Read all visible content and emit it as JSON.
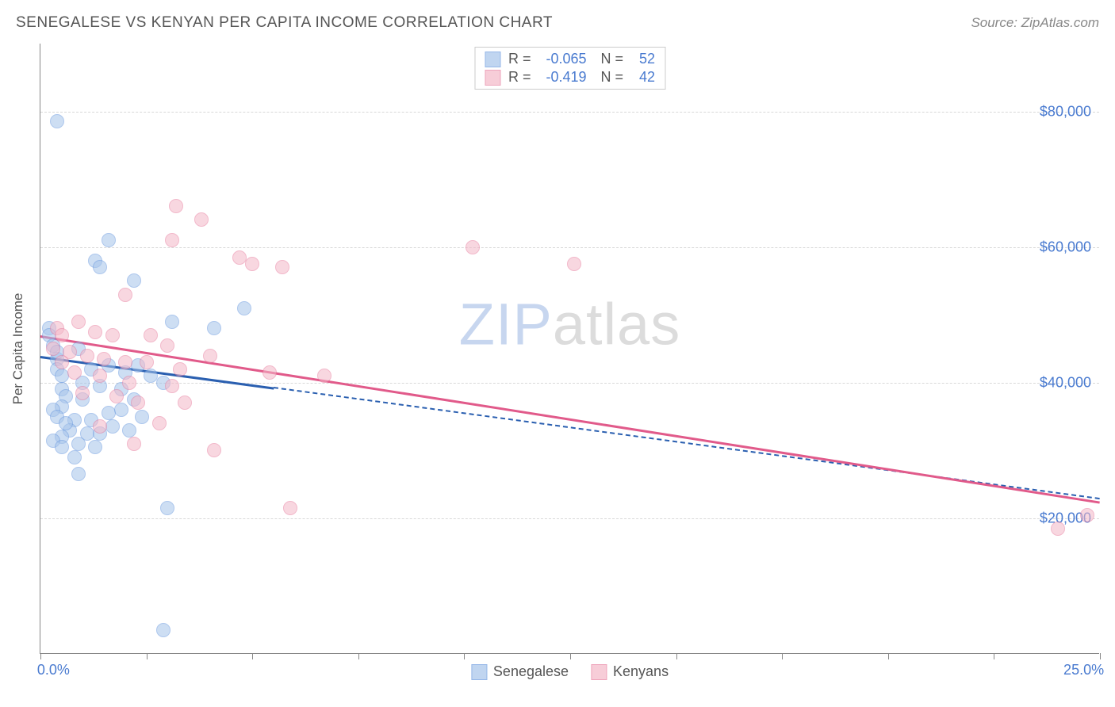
{
  "title": "SENEGALESE VS KENYAN PER CAPITA INCOME CORRELATION CHART",
  "source": "Source: ZipAtlas.com",
  "y_axis_label": "Per Capita Income",
  "watermark": {
    "part1": "ZIP",
    "part2": "atlas"
  },
  "chart": {
    "type": "scatter",
    "xlim": [
      0,
      25
    ],
    "ylim": [
      0,
      90000
    ],
    "x_ticks": [
      0,
      2.5,
      5,
      7.5,
      10,
      12.5,
      15,
      17.5,
      20,
      22.5,
      25
    ],
    "x_tick_labels": {
      "0": "0.0%",
      "25": "25.0%"
    },
    "y_gridlines": [
      20000,
      40000,
      60000,
      80000
    ],
    "y_tick_labels": {
      "20000": "$20,000",
      "40000": "$40,000",
      "60000": "$60,000",
      "80000": "$80,000"
    },
    "background_color": "#ffffff",
    "grid_color": "#d8d8d8",
    "axis_color": "#888888",
    "dot_radius": 9,
    "series": [
      {
        "name": "Senegalese",
        "fill": "#a6c4ea",
        "fill_opacity": 0.55,
        "stroke": "#6b9adf",
        "stroke_width": 1.3,
        "r": "-0.065",
        "n": "52",
        "trend": {
          "color": "#2a5fb0",
          "solid_from_x": 0,
          "solid_to_x": 5.5,
          "y_at_x0": 44000,
          "y_at_x25": 23000
        },
        "points": [
          [
            0.4,
            78500
          ],
          [
            1.6,
            61000
          ],
          [
            1.3,
            58000
          ],
          [
            1.4,
            57000
          ],
          [
            2.2,
            55000
          ],
          [
            3.1,
            49000
          ],
          [
            4.1,
            48000
          ],
          [
            4.8,
            51000
          ],
          [
            0.2,
            48000
          ],
          [
            0.2,
            47000
          ],
          [
            0.3,
            45500
          ],
          [
            0.9,
            45000
          ],
          [
            0.4,
            43500
          ],
          [
            0.4,
            42000
          ],
          [
            0.5,
            41000
          ],
          [
            1.2,
            42000
          ],
          [
            1.6,
            42500
          ],
          [
            2.0,
            41500
          ],
          [
            2.6,
            41000
          ],
          [
            2.3,
            42500
          ],
          [
            1.0,
            40000
          ],
          [
            0.5,
            39000
          ],
          [
            0.6,
            38000
          ],
          [
            1.0,
            37500
          ],
          [
            1.4,
            39500
          ],
          [
            1.9,
            39000
          ],
          [
            2.2,
            37500
          ],
          [
            2.9,
            40000
          ],
          [
            0.5,
            36500
          ],
          [
            0.3,
            36000
          ],
          [
            0.4,
            35000
          ],
          [
            0.8,
            34500
          ],
          [
            1.2,
            34500
          ],
          [
            1.6,
            35500
          ],
          [
            1.9,
            36000
          ],
          [
            2.4,
            35000
          ],
          [
            0.7,
            33000
          ],
          [
            1.1,
            32500
          ],
          [
            1.4,
            32500
          ],
          [
            0.5,
            32000
          ],
          [
            0.3,
            31500
          ],
          [
            0.9,
            31000
          ],
          [
            1.3,
            30500
          ],
          [
            0.5,
            30500
          ],
          [
            0.8,
            29000
          ],
          [
            0.9,
            26500
          ],
          [
            3.0,
            21500
          ],
          [
            2.9,
            3500
          ],
          [
            0.6,
            34000
          ],
          [
            1.7,
            33500
          ],
          [
            2.1,
            33000
          ],
          [
            0.4,
            44500
          ]
        ]
      },
      {
        "name": "Kenyans",
        "fill": "#f4b8c8",
        "fill_opacity": 0.55,
        "stroke": "#e87fa0",
        "stroke_width": 1.3,
        "r": "-0.419",
        "n": "42",
        "trend": {
          "color": "#e15a8a",
          "solid_from_x": 0,
          "solid_to_x": 25,
          "y_at_x0": 47000,
          "y_at_x25": 22500
        },
        "points": [
          [
            3.2,
            66000
          ],
          [
            3.8,
            64000
          ],
          [
            3.1,
            61000
          ],
          [
            4.7,
            58500
          ],
          [
            5.7,
            57000
          ],
          [
            5.0,
            57500
          ],
          [
            10.2,
            60000
          ],
          [
            12.6,
            57500
          ],
          [
            2.0,
            53000
          ],
          [
            0.9,
            49000
          ],
          [
            0.4,
            48000
          ],
          [
            0.5,
            47000
          ],
          [
            1.3,
            47500
          ],
          [
            1.7,
            47000
          ],
          [
            2.6,
            47000
          ],
          [
            3.0,
            45500
          ],
          [
            0.3,
            45000
          ],
          [
            0.7,
            44500
          ],
          [
            1.1,
            44000
          ],
          [
            1.5,
            43500
          ],
          [
            2.0,
            43000
          ],
          [
            2.5,
            43000
          ],
          [
            3.3,
            42000
          ],
          [
            4.0,
            44000
          ],
          [
            0.8,
            41500
          ],
          [
            1.4,
            41000
          ],
          [
            2.1,
            40000
          ],
          [
            3.1,
            39500
          ],
          [
            1.0,
            38500
          ],
          [
            1.8,
            38000
          ],
          [
            2.3,
            37000
          ],
          [
            3.4,
            37000
          ],
          [
            5.4,
            41500
          ],
          [
            6.7,
            41000
          ],
          [
            2.8,
            34000
          ],
          [
            1.4,
            33500
          ],
          [
            2.2,
            31000
          ],
          [
            4.1,
            30000
          ],
          [
            5.9,
            21500
          ],
          [
            24.0,
            18500
          ],
          [
            24.7,
            20500
          ],
          [
            0.5,
            43000
          ]
        ]
      }
    ],
    "legend_labels": {
      "s1": "Senegalese",
      "s2": "Kenyans"
    },
    "stats_labels": {
      "r": "R =",
      "n": "N ="
    }
  }
}
